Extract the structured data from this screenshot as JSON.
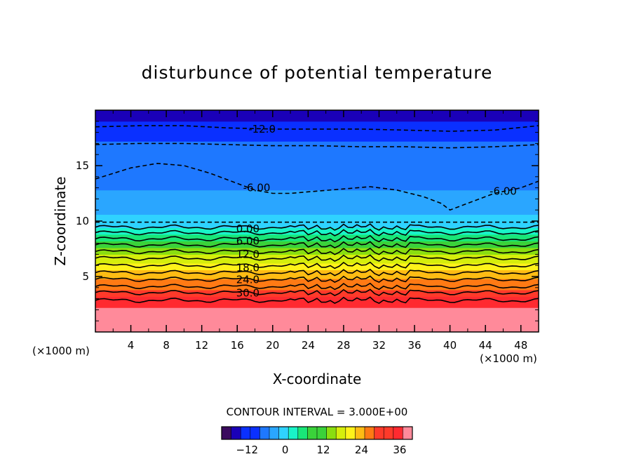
{
  "chart_data": {
    "type": "contour",
    "title": "disturbunce of potential temperature",
    "xlabel": "X-coordinate",
    "ylabel": "Z-coordinate",
    "x_unit_left": "(×1000 m)",
    "x_unit_right": "(×1000 m)",
    "xlim": [
      0,
      50
    ],
    "ylim": [
      0,
      20
    ],
    "xticks": [
      4,
      8,
      12,
      16,
      20,
      24,
      28,
      32,
      36,
      40,
      44,
      48
    ],
    "yticks": [
      5,
      10,
      15
    ],
    "contour_interval_text": "CONTOUR INTERVAL = 3.000E+00",
    "contour_interval": 3,
    "negative_contours_dashed": true,
    "colorbar": {
      "range": [
        -20,
        40
      ],
      "ticks": [
        -12,
        0,
        12,
        24,
        36
      ],
      "colors": [
        "#3a0a5e",
        "#1a00b8",
        "#0a30ff",
        "#1e78ff",
        "#2aa6ff",
        "#2fd2ff",
        "#19f4c8",
        "#19e678",
        "#3ad23a",
        "#8ade10",
        "#d6ee0c",
        "#fff21a",
        "#ffbc14",
        "#ff7a14",
        "#ff3a2a",
        "#ff2a30",
        "#ff8a9a"
      ]
    },
    "theta_profile": {
      "z": [
        0,
        1,
        2,
        3,
        3.5,
        4,
        5,
        6,
        7,
        8,
        9,
        9.5,
        10,
        11,
        12,
        13,
        14,
        15,
        16,
        17,
        18,
        19,
        20
      ],
      "value": [
        38,
        38,
        37,
        34,
        31,
        29,
        25,
        20,
        15,
        10,
        4,
        1,
        -1,
        -3,
        -5,
        -6,
        -7,
        -8,
        -8,
        -9,
        -11,
        -13,
        -15
      ]
    },
    "contour_labels": [
      {
        "text": "-12.0",
        "x": 18.8,
        "z": 18.3
      },
      {
        "text": "-6.00",
        "x": 18.2,
        "z": 13.0
      },
      {
        "text": "-6.00",
        "x": 46.0,
        "z": 12.7
      },
      {
        "text": "0.00",
        "x": 17.2,
        "z": 9.3
      },
      {
        "text": "6.00",
        "x": 17.2,
        "z": 8.2
      },
      {
        "text": "12.0",
        "x": 17.2,
        "z": 7.0
      },
      {
        "text": "18.0",
        "x": 17.2,
        "z": 5.8
      },
      {
        "text": "24.0",
        "x": 17.2,
        "z": 4.7
      },
      {
        "text": "30.0",
        "x": 17.2,
        "z": 3.5
      }
    ],
    "dashed_contours": [
      {
        "level": -12,
        "x": [
          0,
          5,
          10,
          15,
          20,
          25,
          30,
          35,
          40,
          45,
          50
        ],
        "z": [
          18.5,
          18.6,
          18.6,
          18.4,
          18.3,
          18.3,
          18.3,
          18.2,
          18.1,
          18.2,
          18.6
        ]
      },
      {
        "level": -9,
        "x": [
          0,
          5,
          10,
          15,
          20,
          25,
          30,
          35,
          40,
          45,
          50
        ],
        "z": [
          16.9,
          17.0,
          17.0,
          16.9,
          16.8,
          16.8,
          16.7,
          16.7,
          16.6,
          16.7,
          16.9
        ]
      },
      {
        "level": -6,
        "x": [
          0,
          4,
          7,
          10,
          13,
          16,
          18,
          20,
          22,
          25,
          28,
          31,
          34,
          37,
          39,
          40,
          42,
          45,
          48,
          50
        ],
        "z": [
          13.8,
          14.8,
          15.2,
          15.0,
          14.3,
          13.4,
          12.8,
          12.5,
          12.5,
          12.7,
          12.9,
          13.1,
          12.8,
          12.2,
          11.6,
          11.0,
          11.6,
          12.5,
          13.0,
          13.6
        ]
      },
      {
        "level": -3,
        "x": [
          0,
          10,
          20,
          30,
          40,
          50
        ],
        "z": [
          9.9,
          9.9,
          9.9,
          9.9,
          9.9,
          9.9
        ]
      }
    ],
    "solid_contours": [
      {
        "level": 0,
        "z": 9.45
      },
      {
        "level": 3,
        "z": 8.95
      },
      {
        "level": 6,
        "z": 8.4
      },
      {
        "level": 9,
        "z": 7.85
      },
      {
        "level": 12,
        "z": 7.25
      },
      {
        "level": 15,
        "z": 6.65
      },
      {
        "level": 18,
        "z": 6.0
      },
      {
        "level": 21,
        "z": 5.35
      },
      {
        "level": 24,
        "z": 4.75
      },
      {
        "level": 27,
        "z": 4.1
      },
      {
        "level": 30,
        "z": 3.55
      },
      {
        "level": 33,
        "z": 2.85
      }
    ]
  }
}
